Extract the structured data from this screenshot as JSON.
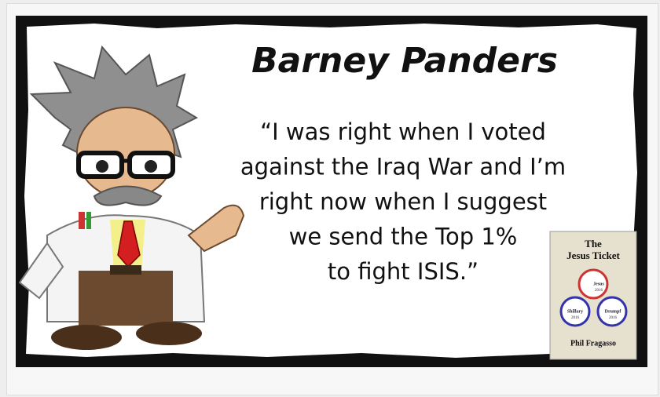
{
  "meme": {
    "title": "Barney Panders",
    "quote_lines": [
      "“I was right when I voted",
      "against the Iraq War and I’m",
      "right now when I suggest",
      "we send the Top 1%",
      "to fight ISIS.”"
    ],
    "book": {
      "title_lines": [
        "The",
        "Jesus Ticket"
      ],
      "author": "Phil Fragasso",
      "buttons": [
        {
          "name": "Jesus",
          "year": "2016"
        },
        {
          "name": "Shillary",
          "year": "2016"
        },
        {
          "name": "Drumpf",
          "year": "2016"
        }
      ]
    }
  }
}
